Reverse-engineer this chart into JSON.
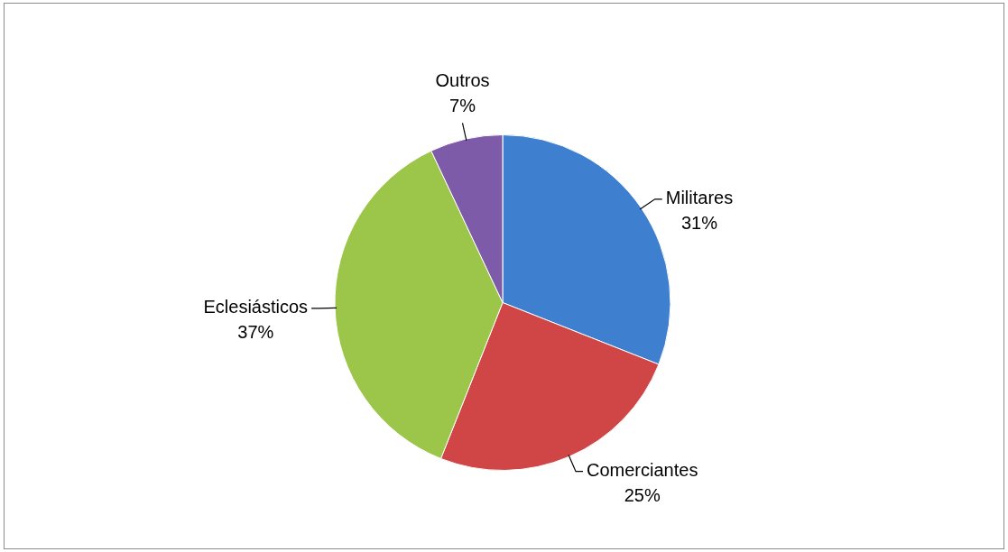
{
  "chart_data": {
    "type": "pie",
    "categories": [
      "Militares",
      "Comerciantes",
      "Eclesiásticos",
      "Outros"
    ],
    "values": [
      31,
      25,
      37,
      7
    ],
    "colors": [
      "#3f7fd0",
      "#d04545",
      "#9bc649",
      "#7e5ba8"
    ],
    "value_labels": [
      "31%",
      "25%",
      "37%",
      "7%"
    ],
    "legend": false
  }
}
